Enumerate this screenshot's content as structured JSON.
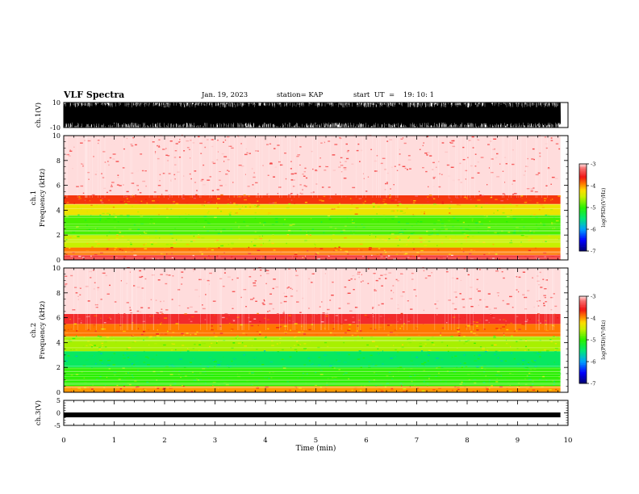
{
  "header": {
    "title": "VLF Spectra",
    "date": "Jan. 19, 2023",
    "station": "station= KAP",
    "start": "start  UT  =    19: 10: 1"
  },
  "chart_data": [
    {
      "type": "line",
      "name": "ch1-waveform",
      "ylabel": "ch.1(V)",
      "ylim": [
        -10,
        10
      ],
      "yticks": [
        "10",
        "-10"
      ],
      "xlim": [
        0,
        10
      ],
      "data_end": 9.85,
      "description_values": "dense noise waveform saturating near ±10 V"
    },
    {
      "type": "heatmap",
      "name": "ch1-spectrogram",
      "ylabel_top": "ch.1",
      "ylabel": "Frequency (kHz)",
      "ylim": [
        0,
        10
      ],
      "yticks": [
        "0",
        "2",
        "4",
        "6",
        "8",
        "10"
      ],
      "xlim": [
        0,
        10
      ],
      "data_end": 9.85,
      "bands": [
        {
          "from": 0.0,
          "to": 0.4,
          "level": -3.4
        },
        {
          "from": 0.4,
          "to": 1.0,
          "level": -3.9
        },
        {
          "from": 1.0,
          "to": 2.0,
          "level": -4.5
        },
        {
          "from": 2.0,
          "to": 3.6,
          "level": -4.9
        },
        {
          "from": 3.6,
          "to": 4.5,
          "level": -4.3
        },
        {
          "from": 4.5,
          "to": 5.2,
          "level": -3.7
        },
        {
          "from": 5.2,
          "to": 10.0,
          "level": -3.0
        }
      ],
      "colorbar": {
        "label": "log(PSD)(V²/Hz)",
        "min": -7,
        "max": -3,
        "ticks": [
          "-3",
          "-4",
          "-5",
          "-6",
          "-7"
        ]
      }
    },
    {
      "type": "heatmap",
      "name": "ch2-spectrogram",
      "ylabel_top": "ch.2",
      "ylabel": "Frequency (kHz)",
      "ylim": [
        0,
        10
      ],
      "yticks": [
        "0",
        "2",
        "4",
        "6",
        "8",
        "10"
      ],
      "xlim": [
        0,
        10
      ],
      "data_end": 9.85,
      "bands": [
        {
          "from": 0.0,
          "to": 0.5,
          "level": -4.0
        },
        {
          "from": 0.5,
          "to": 2.0,
          "level": -5.0
        },
        {
          "from": 2.0,
          "to": 3.3,
          "level": -5.4
        },
        {
          "from": 3.3,
          "to": 4.5,
          "level": -4.6
        },
        {
          "from": 4.5,
          "to": 5.5,
          "level": -3.9
        },
        {
          "from": 5.5,
          "to": 6.3,
          "level": -3.5
        },
        {
          "from": 6.3,
          "to": 10.0,
          "level": -3.0
        }
      ],
      "colorbar": {
        "label": "log(PSD)(V²/Hz)",
        "min": -7,
        "max": -3,
        "ticks": [
          "-3",
          "-4",
          "-5",
          "-6",
          "-7"
        ]
      }
    },
    {
      "type": "line",
      "name": "ch3-waveform",
      "ylabel": "ch.3(V)",
      "ylim": [
        -5,
        5
      ],
      "yticks": [
        "5",
        "0",
        "-5"
      ],
      "xlim": [
        0,
        10
      ],
      "data_end": 9.85,
      "level": -0.8,
      "xlabel": "Time (min)",
      "xticks": [
        "0",
        "1",
        "2",
        "3",
        "4",
        "5",
        "6",
        "7",
        "8",
        "9",
        "10"
      ]
    }
  ]
}
